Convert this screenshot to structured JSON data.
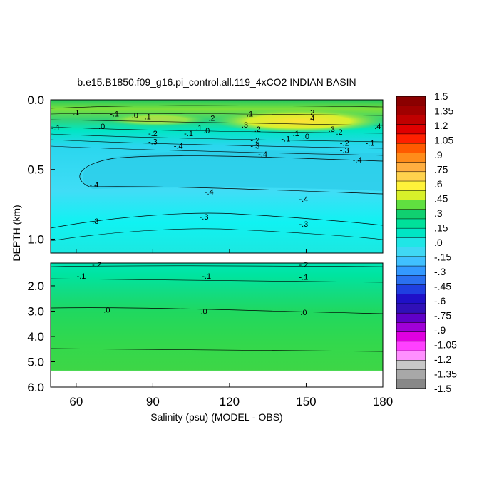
{
  "chart_data": {
    "type": "heatmap",
    "title": "b.e15.B1850.f09_g16.pi_control.all.119_4xCO2 INDIAN BASIN",
    "xlabel": "Salinity (psu) (MODEL - OBS)",
    "ylabel": "DEPTH (km)",
    "xlim": [
      50,
      180
    ],
    "x_ticks": [
      "60",
      "90",
      "120",
      "150",
      "180"
    ],
    "upper_panel": {
      "ylim": [
        0.0,
        1.1
      ],
      "y_ticks": [
        "0.0",
        "0.5",
        "1.0"
      ]
    },
    "lower_panel": {
      "ylim": [
        1.1,
        6.0
      ],
      "y_ticks": [
        "2.0",
        "3.0",
        "4.0",
        "5.0",
        "6.0"
      ],
      "data_bottom_depth": 5.35
    },
    "colorbar": {
      "levels": [
        1.5,
        1.35,
        1.2,
        1.05,
        0.9,
        0.75,
        0.6,
        0.45,
        0.3,
        0.15,
        0.0,
        -0.15,
        -0.3,
        -0.45,
        -0.6,
        -0.75,
        -0.9,
        -1.05,
        -1.2,
        -1.35,
        -1.5
      ],
      "labels": [
        "1.5",
        "1.35",
        "1.2",
        "1.05",
        ".9",
        ".75",
        ".6",
        ".45",
        ".3",
        ".15",
        ".0",
        "-.15",
        "-.3",
        "-.45",
        "-.6",
        "-.75",
        "-.9",
        "-1.05",
        "-1.2",
        "-1.35",
        "-1.5"
      ],
      "colors": [
        "#8b0000",
        "#a00000",
        "#c00000",
        "#e00000",
        "#ff2000",
        "#ff5a00",
        "#ff8c1a",
        "#ffae40",
        "#ffd24d",
        "#fff23a",
        "#d8f02a",
        "#60e040",
        "#10d070",
        "#00e09a",
        "#00e6c4",
        "#20e6e6",
        "#40d8f4",
        "#40c0ff",
        "#3399ff",
        "#2a70f0",
        "#1f3fe0",
        "#1f10c8",
        "#3010b8",
        "#6000c8",
        "#a000d8",
        "#e000e0",
        "#ff40ff",
        "#ff90ff",
        "#c8c8c8",
        "#a8a8a8",
        "#888888"
      ]
    },
    "contour_labels_upper": [
      {
        "x": 52,
        "depth": 0.2,
        "text": "-.1"
      },
      {
        "x": 60,
        "depth": 0.09,
        "text": ".1"
      },
      {
        "x": 75,
        "depth": 0.1,
        "text": "-.1"
      },
      {
        "x": 70,
        "depth": 0.19,
        "text": ".0"
      },
      {
        "x": 83,
        "depth": 0.11,
        "text": ".0"
      },
      {
        "x": 88,
        "depth": 0.12,
        "text": ".1"
      },
      {
        "x": 90,
        "depth": 0.24,
        "text": "-.2"
      },
      {
        "x": 90,
        "depth": 0.3,
        "text": "-.3"
      },
      {
        "x": 100,
        "depth": 0.33,
        "text": "-.4"
      },
      {
        "x": 104,
        "depth": 0.24,
        "text": "-.1"
      },
      {
        "x": 108,
        "depth": 0.2,
        "text": ".1"
      },
      {
        "x": 111,
        "depth": 0.22,
        "text": ".0"
      },
      {
        "x": 113,
        "depth": 0.13,
        "text": ".2"
      },
      {
        "x": 126,
        "depth": 0.18,
        "text": ".3"
      },
      {
        "x": 128,
        "depth": 0.1,
        "text": ".1"
      },
      {
        "x": 131,
        "depth": 0.21,
        "text": ".2"
      },
      {
        "x": 130,
        "depth": 0.29,
        "text": "-.2"
      },
      {
        "x": 130,
        "depth": 0.33,
        "text": "-.3"
      },
      {
        "x": 133,
        "depth": 0.39,
        "text": "-.4"
      },
      {
        "x": 142,
        "depth": 0.28,
        "text": "-.1"
      },
      {
        "x": 146,
        "depth": 0.24,
        "text": ".1"
      },
      {
        "x": 150,
        "depth": 0.26,
        "text": ".0"
      },
      {
        "x": 152,
        "depth": 0.09,
        "text": ".2"
      },
      {
        "x": 152,
        "depth": 0.13,
        "text": ".4"
      },
      {
        "x": 160,
        "depth": 0.21,
        "text": ".3"
      },
      {
        "x": 163,
        "depth": 0.23,
        "text": ".2"
      },
      {
        "x": 165,
        "depth": 0.31,
        "text": "-.2"
      },
      {
        "x": 165,
        "depth": 0.36,
        "text": "-.3"
      },
      {
        "x": 175,
        "depth": 0.31,
        "text": "-.1"
      },
      {
        "x": 170,
        "depth": 0.43,
        "text": "-.4"
      },
      {
        "x": 178,
        "depth": 0.19,
        "text": ".4"
      },
      {
        "x": 67,
        "depth": 0.61,
        "text": "-.4"
      },
      {
        "x": 112,
        "depth": 0.66,
        "text": "-.4"
      },
      {
        "x": 149,
        "depth": 0.71,
        "text": "-.4"
      },
      {
        "x": 110,
        "depth": 0.84,
        "text": "-.3"
      },
      {
        "x": 67,
        "depth": 0.87,
        "text": "-.3"
      },
      {
        "x": 149,
        "depth": 0.89,
        "text": "-.3"
      }
    ],
    "contour_labels_lower": [
      {
        "x": 68,
        "depth": 1.15,
        "text": "-.2"
      },
      {
        "x": 149,
        "depth": 1.16,
        "text": "-.2"
      },
      {
        "x": 62,
        "depth": 1.6,
        "text": "-.1"
      },
      {
        "x": 111,
        "depth": 1.6,
        "text": "-.1"
      },
      {
        "x": 149,
        "depth": 1.65,
        "text": "-.1"
      },
      {
        "x": 72,
        "depth": 2.95,
        "text": ".0"
      },
      {
        "x": 110,
        "depth": 3.0,
        "text": ".0"
      },
      {
        "x": 149,
        "depth": 3.05,
        "text": ".0"
      }
    ]
  }
}
